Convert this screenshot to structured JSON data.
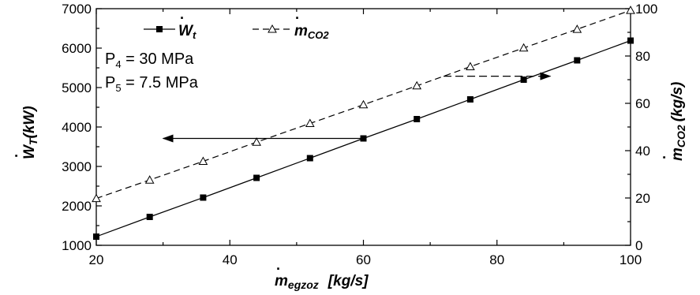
{
  "chart_data": {
    "type": "line",
    "x": [
      20,
      28,
      36,
      44,
      52,
      60,
      68,
      76,
      84,
      92,
      100
    ],
    "xlim": [
      20,
      100
    ],
    "xticks": [
      "20",
      "40",
      "60",
      "80",
      "100"
    ],
    "xlabel": {
      "symbol": "m",
      "sub": "egzoz",
      "unit": "[kg/s]"
    },
    "ylim_left": [
      1000,
      7000
    ],
    "yticks_left": [
      "1000",
      "2000",
      "3000",
      "4000",
      "5000",
      "6000",
      "7000"
    ],
    "ylabel_left": {
      "symbol": "W",
      "sub": "T",
      "unit": "(kW)"
    },
    "ylim_right": [
      0,
      100
    ],
    "yticks_right": [
      "0",
      "20",
      "40",
      "60",
      "80",
      "100"
    ],
    "ylabel_right": {
      "symbol": "m",
      "sub": "CO2",
      "unit": "(kg/s)"
    },
    "series": [
      {
        "name": "W",
        "sub": "t",
        "axis": "left",
        "line": "solid",
        "marker": "filled-square",
        "values": [
          1220,
          1720,
          2210,
          2710,
          3210,
          3710,
          4200,
          4700,
          5200,
          5690,
          6190
        ]
      },
      {
        "name": "m",
        "sub": "CO2",
        "axis": "right",
        "line": "dashed",
        "marker": "open-triangle",
        "values": [
          19.8,
          27.6,
          35.5,
          43.6,
          51.5,
          59.4,
          67.4,
          75.5,
          83.4,
          91.3,
          99.3
        ]
      }
    ],
    "annotations": [
      {
        "lines": [
          "P",
          "4",
          " = 30 MPa"
        ]
      },
      {
        "lines": [
          "P",
          "5",
          " = 7.5 MPa"
        ]
      }
    ],
    "arrows": [
      {
        "series": 0,
        "direction": "left",
        "from_x": 60,
        "to_x": 30
      },
      {
        "series": 1,
        "direction": "right",
        "from_x": 72,
        "to_x": 88
      }
    ],
    "grid": false,
    "legend_position": "top-inside"
  }
}
